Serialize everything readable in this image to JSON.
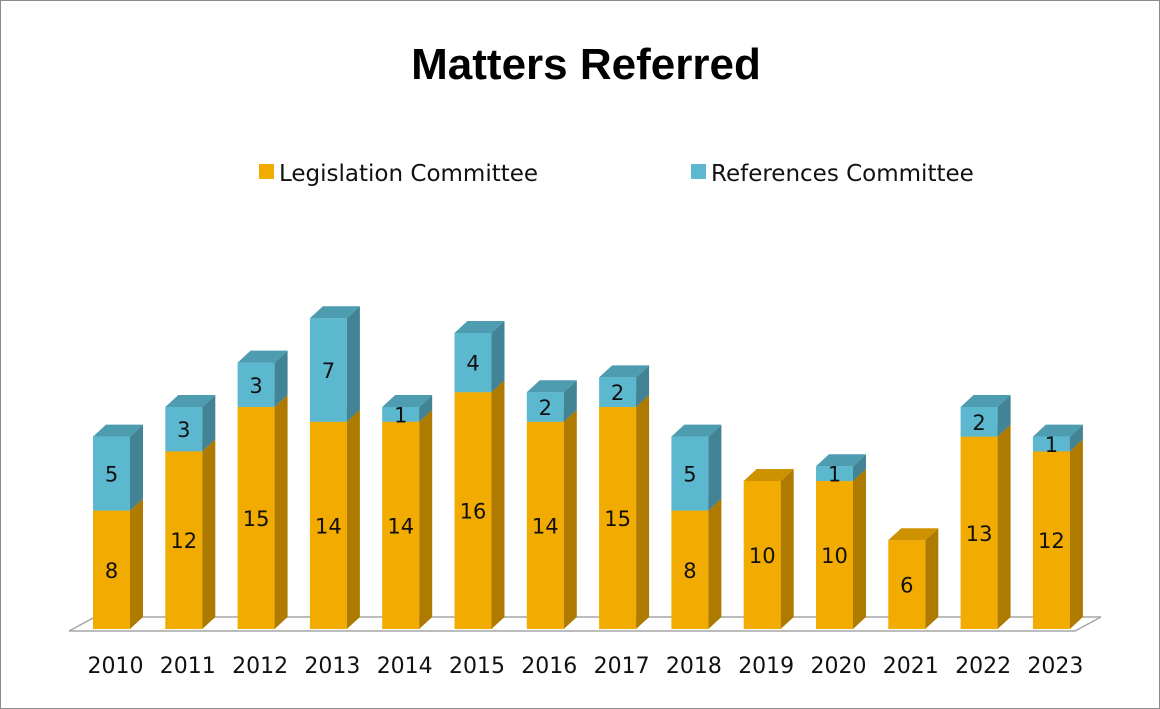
{
  "chart_data": {
    "type": "bar",
    "stacked": true,
    "three_d": true,
    "title": "Matters Referred",
    "categories": [
      "2010",
      "2011",
      "2012",
      "2013",
      "2014",
      "2015",
      "2016",
      "2017",
      "2018",
      "2019",
      "2020",
      "2021",
      "2022",
      "2023"
    ],
    "series": [
      {
        "name": "Legislation Committee",
        "color": "#f2ab00",
        "values": [
          8,
          12,
          15,
          14,
          14,
          16,
          14,
          15,
          8,
          10,
          10,
          6,
          13,
          12
        ]
      },
      {
        "name": "References Committee",
        "color": "#5bb8cf",
        "values": [
          5,
          3,
          3,
          7,
          1,
          4,
          2,
          2,
          5,
          0,
          1,
          0,
          2,
          1
        ]
      }
    ],
    "legend_position": "top",
    "grid": false
  }
}
